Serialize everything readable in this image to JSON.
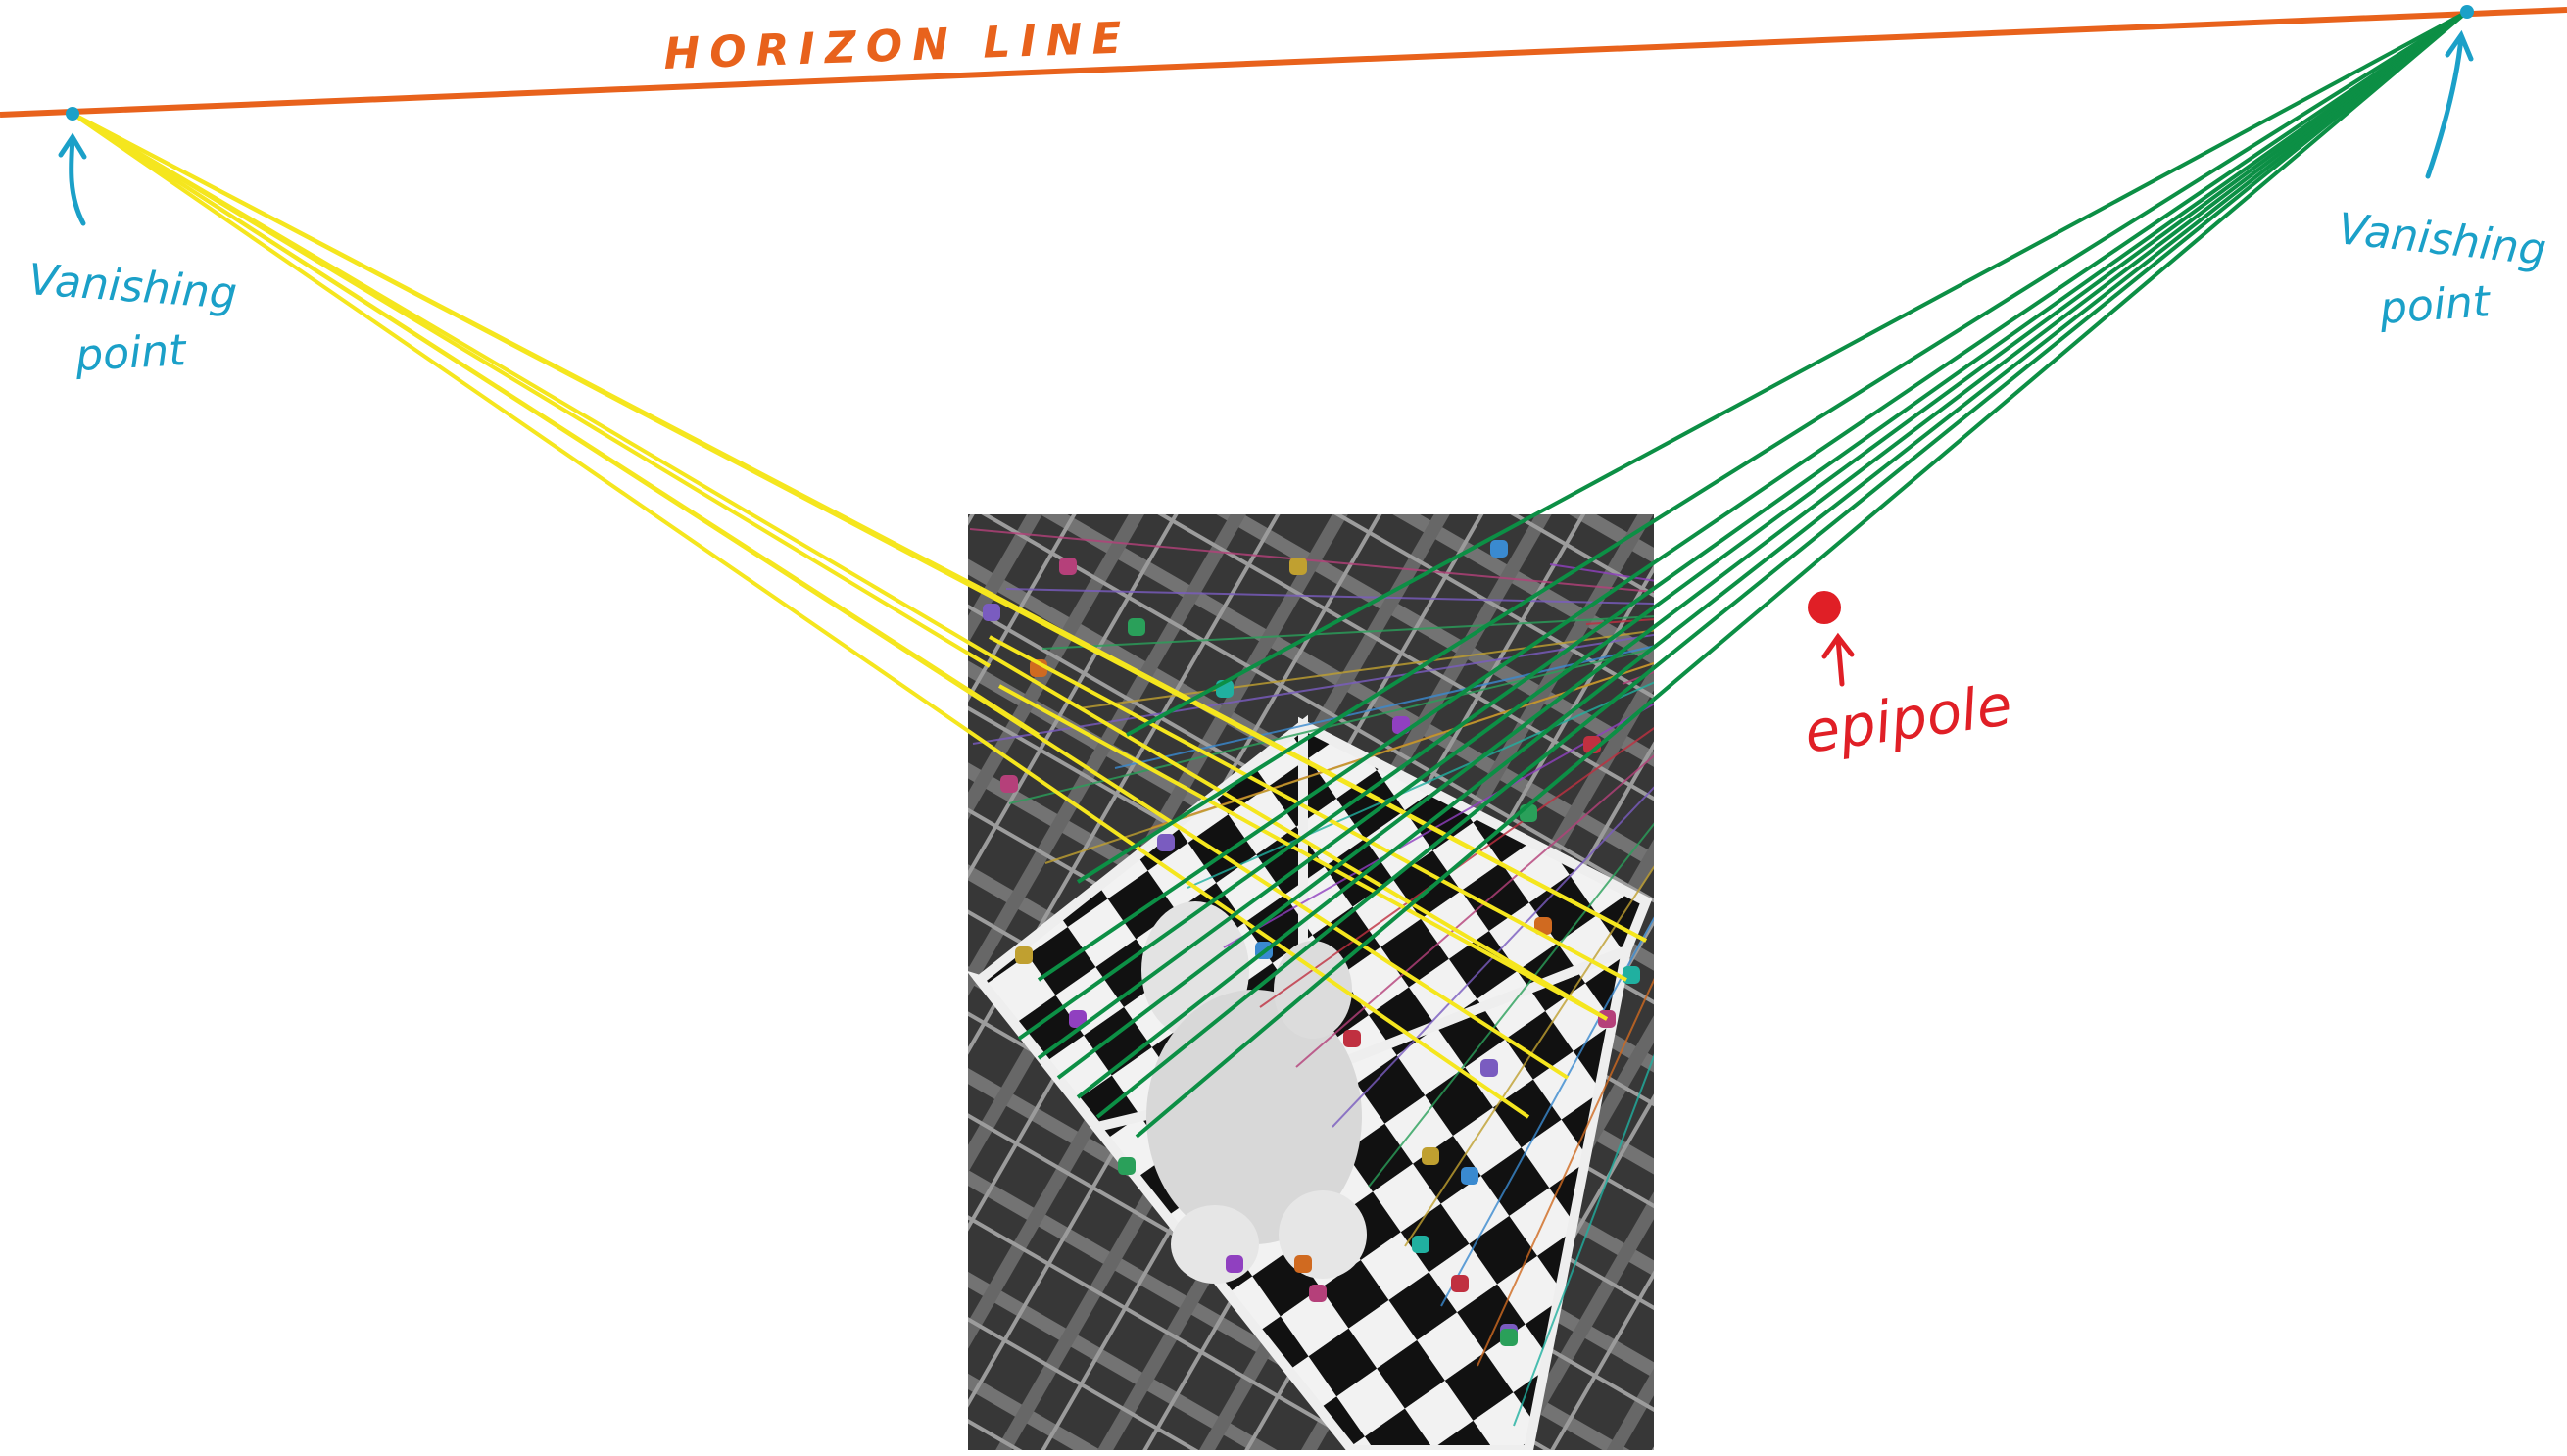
{
  "annotations": {
    "horizon_label": "HORIZON LINE",
    "left_vp_line1": "Vanishing",
    "left_vp_line2": "point",
    "right_vp_line1": "Vanishing",
    "right_vp_line2": "point",
    "epipole_label": "epipole"
  },
  "colors": {
    "horizon": "#e8621c",
    "annotation": "#1ba0c8",
    "epipole": "#e01f26",
    "left_vanishing_lines": "#f5e61e",
    "right_vanishing_lines": "#0c8f45"
  },
  "scene": {
    "left_vanishing_line_count": 7,
    "right_vanishing_line_count": 9
  }
}
